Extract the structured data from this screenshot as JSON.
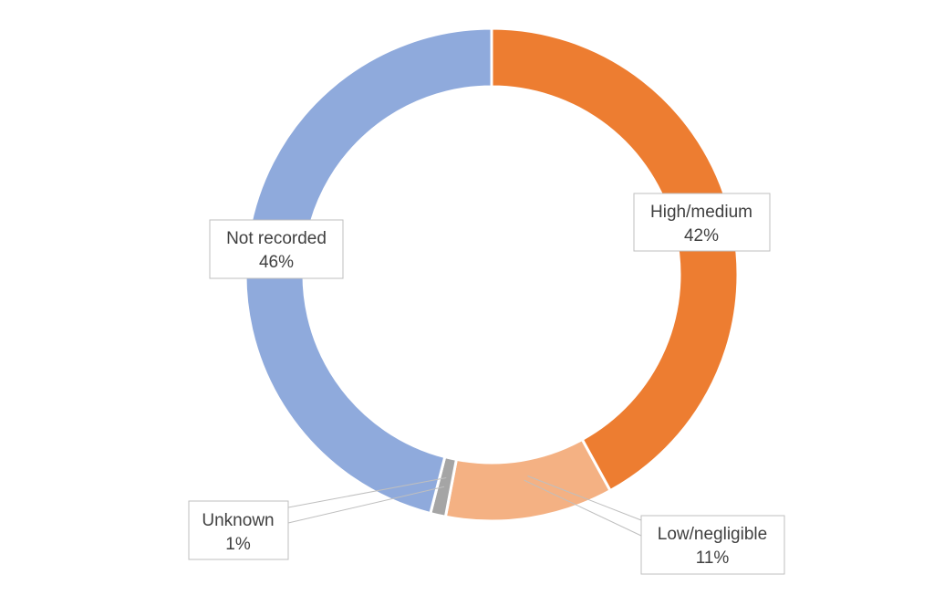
{
  "chart_data": {
    "type": "pie",
    "variant": "donut",
    "title": "",
    "slices": [
      {
        "name": "High/medium",
        "value": 42,
        "label": "42%",
        "color": "#ED7D31"
      },
      {
        "name": "Low/negligible",
        "value": 11,
        "label": "11%",
        "color": "#F4B183"
      },
      {
        "name": "Unknown",
        "value": 1,
        "label": "1%",
        "color": "#A5A5A5"
      },
      {
        "name": "Not recorded",
        "value": 46,
        "label": "46%",
        "color": "#8FAADC"
      }
    ],
    "legend": "none"
  }
}
